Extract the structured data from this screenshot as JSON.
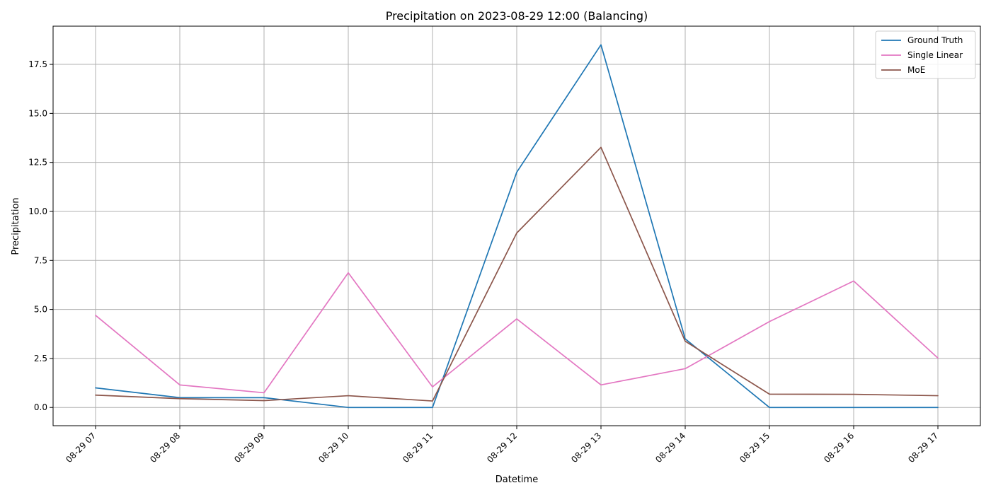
{
  "chart_data": {
    "type": "line",
    "title": "Precipitation on 2023-08-29 12:00 (Balancing)",
    "xlabel": "Datetime",
    "ylabel": "Precipitation",
    "x": [
      "08-29 07",
      "08-29 08",
      "08-29 09",
      "08-29 10",
      "08-29 11",
      "08-29 12",
      "08-29 13",
      "08-29 14",
      "08-29 15",
      "08-29 16",
      "08-29 17"
    ],
    "yticks": [
      "0.0",
      "2.5",
      "5.0",
      "7.5",
      "10.0",
      "12.5",
      "15.0",
      "17.5"
    ],
    "ylim": [
      -0.93,
      19.45
    ],
    "grid": true,
    "legend_position": "top-right",
    "series": [
      {
        "name": "Ground Truth",
        "color": "#1f77b4",
        "values": [
          1.0,
          0.5,
          0.5,
          0.0,
          0.0,
          12.0,
          18.5,
          3.5,
          0.0,
          0.0,
          0.0
        ]
      },
      {
        "name": "Single Linear",
        "color": "#e377c2",
        "values": [
          4.7,
          1.15,
          0.75,
          6.87,
          1.05,
          4.52,
          1.15,
          1.98,
          4.38,
          6.45,
          2.52
        ]
      },
      {
        "name": "MoE",
        "color": "#8c564b",
        "values": [
          0.63,
          0.45,
          0.35,
          0.6,
          0.33,
          8.9,
          13.27,
          3.38,
          0.68,
          0.67,
          0.6
        ]
      }
    ]
  }
}
